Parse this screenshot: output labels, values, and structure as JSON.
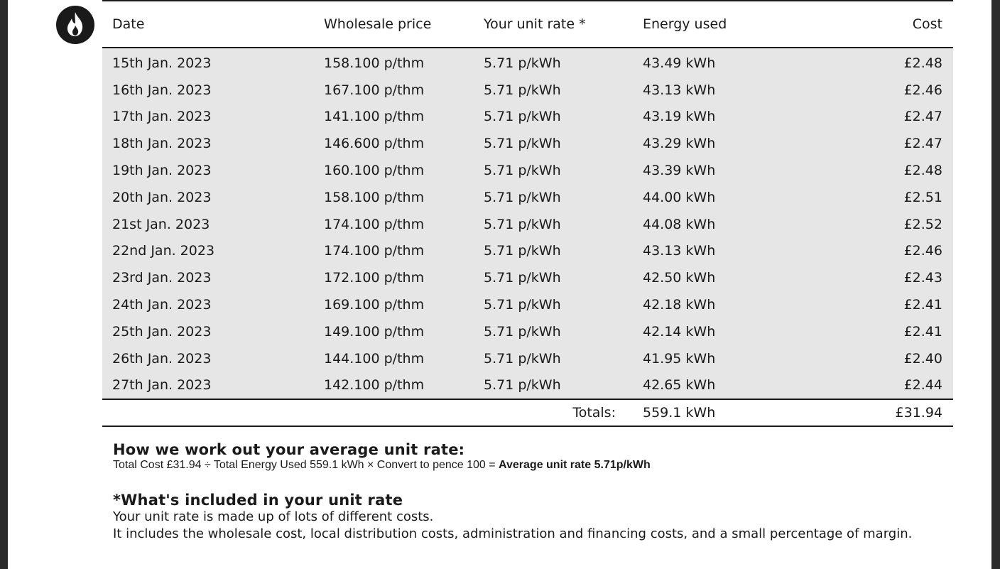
{
  "table": {
    "headers": [
      "Date",
      "Wholesale price",
      "Your unit rate *",
      "Energy used",
      "Cost"
    ],
    "rows": [
      [
        "15th Jan. 2023",
        "158.100 p/thm",
        "5.71 p/kWh",
        "43.49 kWh",
        "£2.48"
      ],
      [
        "16th Jan. 2023",
        "167.100 p/thm",
        "5.71 p/kWh",
        "43.13 kWh",
        "£2.46"
      ],
      [
        "17th Jan. 2023",
        "141.100 p/thm",
        "5.71 p/kWh",
        "43.19 kWh",
        "£2.47"
      ],
      [
        "18th Jan. 2023",
        "146.600 p/thm",
        "5.71 p/kWh",
        "43.29 kWh",
        "£2.47"
      ],
      [
        "19th Jan. 2023",
        "160.100 p/thm",
        "5.71 p/kWh",
        "43.39 kWh",
        "£2.48"
      ],
      [
        "20th Jan. 2023",
        "158.100 p/thm",
        "5.71 p/kWh",
        "44.00 kWh",
        "£2.51"
      ],
      [
        "21st Jan. 2023",
        "174.100 p/thm",
        "5.71 p/kWh",
        "44.08 kWh",
        "£2.52"
      ],
      [
        "22nd Jan. 2023",
        "174.100 p/thm",
        "5.71 p/kWh",
        "43.13 kWh",
        "£2.46"
      ],
      [
        "23rd Jan. 2023",
        "172.100 p/thm",
        "5.71 p/kWh",
        "42.50 kWh",
        "£2.43"
      ],
      [
        "24th Jan. 2023",
        "169.100 p/thm",
        "5.71 p/kWh",
        "42.18 kWh",
        "£2.41"
      ],
      [
        "25th Jan. 2023",
        "149.100 p/thm",
        "5.71 p/kWh",
        "42.14 kWh",
        "£2.41"
      ],
      [
        "26th Jan. 2023",
        "144.100 p/thm",
        "5.71 p/kWh",
        "41.95 kWh",
        "£2.40"
      ],
      [
        "27th Jan. 2023",
        "142.100 p/thm",
        "5.71 p/kWh",
        "42.65 kWh",
        "£2.44"
      ]
    ],
    "totals": {
      "label": "Totals:",
      "energy": "559.1 kWh",
      "cost": "£31.94"
    }
  },
  "average": {
    "heading": "How we work out your average unit rate:",
    "formula": "Total Cost £31.94 ÷ Total Energy Used 559.1 kWh × Convert to pence 100 = ",
    "result": "Average unit rate 5.71p/kWh"
  },
  "included": {
    "heading": "*What's included in your unit rate",
    "line1": "Your unit rate is made up of lots of different costs.",
    "line2": "It includes the wholesale cost, local distribution costs, administration and financing costs, and a small percentage of margin."
  },
  "icons": {
    "fuel": "flame-icon"
  },
  "colors": {
    "row_bg": "#e6e6e6",
    "text": "#1a1a1a"
  }
}
